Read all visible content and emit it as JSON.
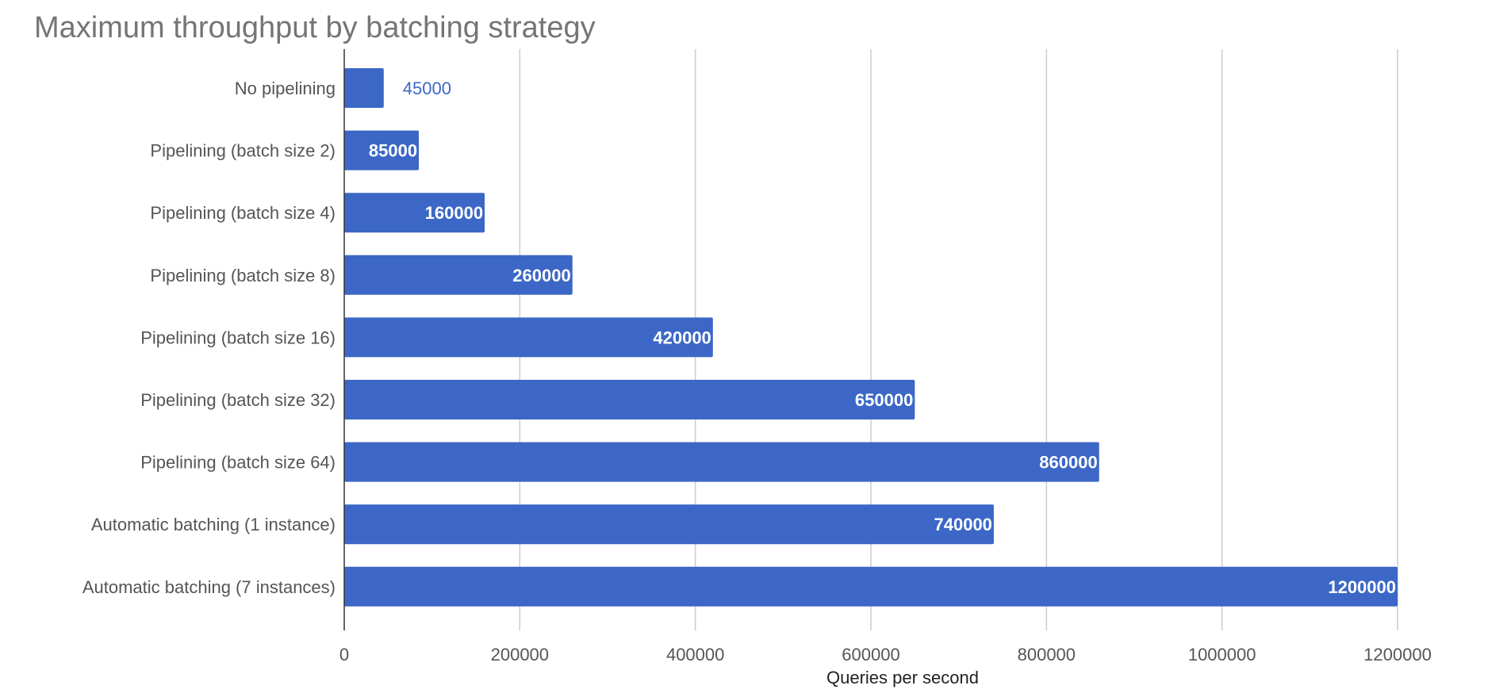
{
  "chart_data": {
    "type": "bar",
    "orientation": "horizontal",
    "title": "Maximum throughput by batching strategy",
    "xlabel": "Queries per second",
    "ylabel": "",
    "xlim": [
      0,
      1200000
    ],
    "xticks": [
      0,
      200000,
      400000,
      600000,
      800000,
      1000000,
      1200000
    ],
    "grid": true,
    "categories": [
      "No pipelining",
      "Pipelining (batch size 2)",
      "Pipelining (batch size 4)",
      "Pipelining (batch size 8)",
      "Pipelining (batch size 16)",
      "Pipelining (batch size 32)",
      "Pipelining (batch size 64)",
      "Automatic batching (1 instance)",
      "Automatic batching (7 instances)"
    ],
    "values": [
      45000,
      85000,
      160000,
      260000,
      420000,
      650000,
      860000,
      740000,
      1200000
    ],
    "data_labels": [
      "45000",
      "85000",
      "160000",
      "260000",
      "420000",
      "650000",
      "860000",
      "740000",
      "1200000"
    ],
    "tick_labels": [
      "0",
      "200000",
      "400000",
      "600000",
      "800000",
      "1000000",
      "1200000"
    ],
    "colors": {
      "bar": "#3c67c6",
      "label_outside": "#3c67c6",
      "grid": "#cccccc"
    }
  }
}
